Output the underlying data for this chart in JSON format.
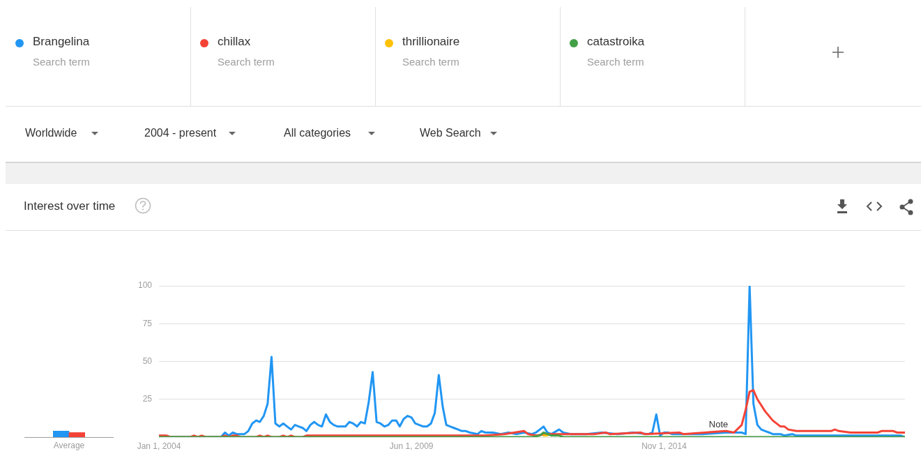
{
  "chart_data": [
    {
      "type": "bar",
      "title": "Interest over time",
      "xlabel": "Average",
      "categories": [
        null,
        null
      ],
      "ylim": [
        0,
        100
      ],
      "tick_labels": false,
      "values": [
        4,
        3
      ],
      "colors": [
        "#2196f3",
        "#f44336"
      ]
    },
    {
      "type": "line",
      "legend": "top",
      "grid": "y",
      "xlim": [
        "2004-01",
        "2020-01"
      ],
      "xticks": [
        {
          "value": "2004-01-01",
          "label": "Jan 1, 2004"
        },
        {
          "value": "2009-06-01",
          "label": "Jun 1, 2009"
        },
        {
          "value": "2014-11-01",
          "label": "Nov 1, 2014"
        }
      ],
      "ylim": [
        0,
        100
      ],
      "yticks": [
        {
          "value": 0,
          "label": null
        },
        25,
        50,
        75,
        100
      ],
      "annotations": [
        "Search term",
        "Search term",
        "Search term",
        "Search term",
        "Worldwide",
        "2004 - present",
        "All categories",
        "Web Search",
        {
          "text": "Note",
          "x": "2016-01",
          "y": 5
        }
      ],
      "series": [
        {
          "name": "Brangelina",
          "color": "#2196f3",
          "x": [
            "2004-01",
            "2005-05",
            "2005-06",
            "2005-07",
            "2005-08",
            "2005-09",
            "2005-11",
            "2005-12",
            "2006-01",
            "2006-02",
            "2006-03",
            "2006-04",
            "2006-05",
            "2006-06",
            "2006-07",
            "2006-08",
            "2006-09",
            "2006-10",
            "2006-11",
            "2006-12",
            "2007-01",
            "2007-02",
            "2007-03",
            "2007-04",
            "2007-05",
            "2007-06",
            "2007-07",
            "2007-08",
            "2007-09",
            "2007-10",
            "2007-11",
            "2008-01",
            "2008-02",
            "2008-03",
            "2008-04",
            "2008-05",
            "2008-06",
            "2008-07",
            "2008-08",
            "2008-09",
            "2008-10",
            "2008-11",
            "2008-12",
            "2009-01",
            "2009-02",
            "2009-03",
            "2009-04",
            "2009-05",
            "2009-06",
            "2009-07",
            "2009-08",
            "2009-09",
            "2009-10",
            "2009-11",
            "2009-12",
            "2010-01",
            "2010-02",
            "2010-03",
            "2010-04",
            "2010-05",
            "2010-06",
            "2010-07",
            "2010-08",
            "2010-09",
            "2010-11",
            "2010-12",
            "2011-01",
            "2011-03",
            "2011-05",
            "2011-07",
            "2011-09",
            "2011-11",
            "2012-01",
            "2012-02",
            "2012-04",
            "2012-05",
            "2012-06",
            "2012-08",
            "2012-09",
            "2012-11",
            "2013-03",
            "2013-07",
            "2013-11",
            "2014-03",
            "2014-07",
            "2014-08",
            "2014-09",
            "2014-10",
            "2014-11",
            "2014-12",
            "2015-01",
            "2015-09",
            "2016-03",
            "2016-07",
            "2016-08",
            "2016-09",
            "2016-10",
            "2016-11",
            "2016-12",
            "2017-01",
            "2017-02",
            "2017-03",
            "2017-05",
            "2017-06",
            "2017-08",
            "2017-09",
            "2019-12",
            "2020-01"
          ],
          "values": [
            0,
            0,
            3,
            1,
            3,
            2,
            2,
            4,
            9,
            11,
            10,
            14,
            22,
            53,
            9,
            7,
            9,
            7,
            5,
            8,
            7,
            6,
            4,
            8,
            10,
            8,
            7,
            15,
            10,
            8,
            7,
            7,
            10,
            9,
            7,
            10,
            9,
            23,
            43,
            10,
            9,
            7,
            8,
            11,
            11,
            7,
            12,
            14,
            13,
            9,
            8,
            7,
            7,
            9,
            16,
            41,
            20,
            8,
            7,
            6,
            5,
            4,
            4,
            3,
            2,
            4,
            3,
            3,
            2,
            3,
            2,
            3,
            2,
            3,
            7,
            3,
            2,
            5,
            3,
            2,
            2,
            3,
            2,
            3,
            2,
            3,
            15,
            1,
            3,
            3,
            2,
            2,
            3,
            3,
            2,
            100,
            22,
            8,
            5,
            4,
            3,
            2,
            2,
            1,
            2,
            1,
            1,
            0
          ]
        },
        {
          "name": "chillax",
          "color": "#f44336",
          "x": [
            "2004-01",
            "2004-03",
            "2004-04",
            "2004-09",
            "2004-10",
            "2004-11",
            "2004-12",
            "2005-01",
            "2005-05",
            "2005-06",
            "2005-07",
            "2005-08",
            "2005-09",
            "2005-10",
            "2006-02",
            "2006-03",
            "2006-04",
            "2006-05",
            "2006-06",
            "2006-08",
            "2006-09",
            "2006-10",
            "2006-11",
            "2006-12",
            "2007-02",
            "2007-03",
            "2011-01",
            "2011-06",
            "2011-11",
            "2011-12",
            "2012-02",
            "2012-05",
            "2013-05",
            "2013-08",
            "2013-09",
            "2014-05",
            "2014-06",
            "2015-03",
            "2015-04",
            "2016-03",
            "2016-05",
            "2016-07",
            "2016-08",
            "2016-09",
            "2016-10",
            "2016-11",
            "2017-01",
            "2017-03",
            "2017-05",
            "2017-06",
            "2017-07",
            "2017-09",
            "2018-06",
            "2018-07",
            "2018-08",
            "2018-11",
            "2019-06",
            "2019-07",
            "2019-10",
            "2019-11",
            "2020-01"
          ],
          "values": [
            1,
            1,
            0,
            0,
            1,
            0,
            1,
            0,
            0,
            1,
            0,
            1,
            1,
            0,
            0,
            1,
            0,
            1,
            0,
            0,
            1,
            0,
            1,
            0,
            0,
            1,
            1,
            2,
            4,
            2,
            1,
            2,
            2,
            3,
            2,
            3,
            2,
            3,
            2,
            4,
            3,
            8,
            18,
            30,
            31,
            25,
            17,
            11,
            7,
            7,
            5,
            4,
            4,
            5,
            4,
            3,
            3,
            4,
            4,
            3,
            3
          ]
        },
        {
          "name": "thrillionaire",
          "color": "#ffc107",
          "x": [
            "2012-04",
            "2012-05"
          ],
          "values": [
            1,
            1
          ]
        },
        {
          "name": "catastroika",
          "color": "#43a047",
          "x": [
            "2004-01",
            "2012-01",
            "2012-03",
            "2012-04",
            "2012-05",
            "2012-06",
            "2012-08",
            "2012-09",
            "2020-01"
          ],
          "values": [
            0,
            0,
            1,
            3,
            2,
            1,
            1,
            0,
            0
          ]
        }
      ]
    }
  ]
}
